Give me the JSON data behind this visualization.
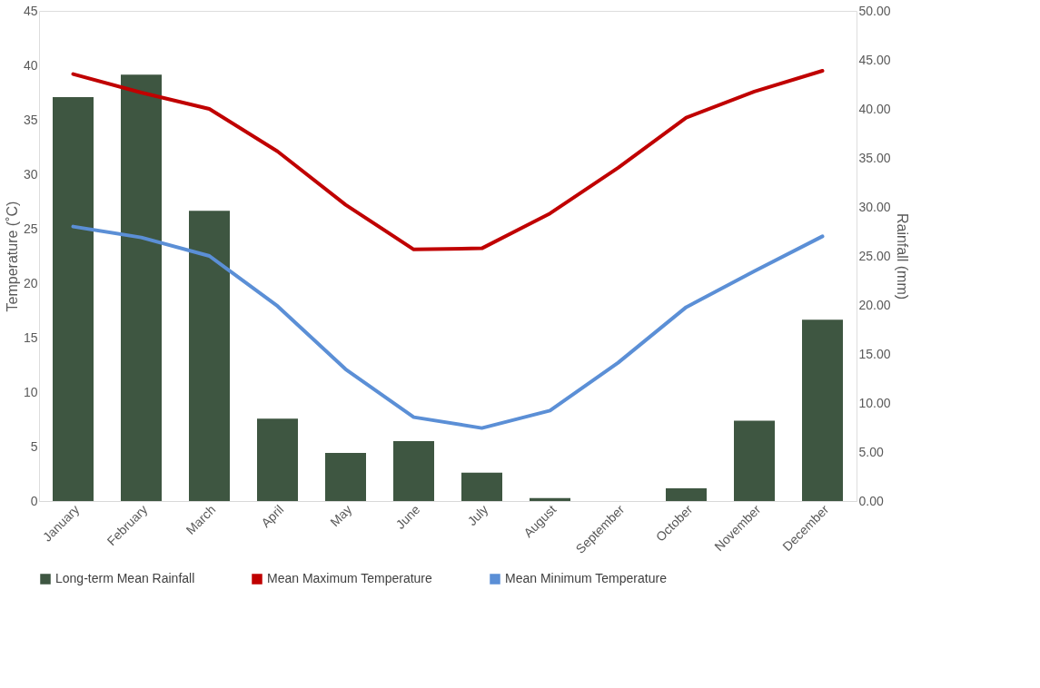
{
  "chart_data": {
    "type": "bar",
    "xlabel": null,
    "ylabel": "Temperature (˚C)",
    "y2label": "Rainfall (mm)",
    "categories": [
      "January",
      "February",
      "March",
      "April",
      "May",
      "June",
      "July",
      "August",
      "September",
      "October",
      "November",
      "December"
    ],
    "series": [
      {
        "name": "Long-term Mean Rainfall",
        "axis": "y2",
        "color": "#3e5641",
        "values": [
          41.2,
          43.5,
          29.6,
          8.4,
          4.9,
          6.1,
          2.9,
          0.3,
          0,
          1.3,
          8.2,
          18.5
        ]
      },
      {
        "name": "Mean Maximum Temperature",
        "type": "line",
        "color": "#c00000",
        "values": [
          39.2,
          37.5,
          36.0,
          32.1,
          27.2,
          23.1,
          23.2,
          26.4,
          30.6,
          35.2,
          37.6,
          39.5
        ]
      },
      {
        "name": "Mean Minimum Temperature",
        "type": "line",
        "color": "#5b8fd6",
        "values": [
          25.2,
          24.2,
          22.5,
          17.9,
          12.1,
          7.7,
          6.7,
          8.3,
          12.7,
          17.8,
          21.1,
          24.3
        ]
      }
    ],
    "ylim": [
      0,
      45
    ],
    "yticks": [
      0,
      5,
      10,
      15,
      20,
      25,
      30,
      35,
      40,
      45
    ],
    "y2lim": [
      0,
      50
    ],
    "y2ticks": [
      {
        "value": 0,
        "label": "0.00"
      },
      {
        "value": 5,
        "label": "5.00"
      },
      {
        "value": 10,
        "label": "10.00"
      },
      {
        "value": 15,
        "label": "15.00"
      },
      {
        "value": 20,
        "label": "20.00"
      },
      {
        "value": 25,
        "label": "25.00"
      },
      {
        "value": 30,
        "label": "30.00"
      },
      {
        "value": 35,
        "label": "35.00"
      },
      {
        "value": 40,
        "label": "40.00"
      },
      {
        "value": 45,
        "label": "45.00"
      },
      {
        "value": 50,
        "label": "50.00"
      }
    ],
    "grid": false,
    "legend": "bottom",
    "marker": "none",
    "line_style": "solid"
  }
}
